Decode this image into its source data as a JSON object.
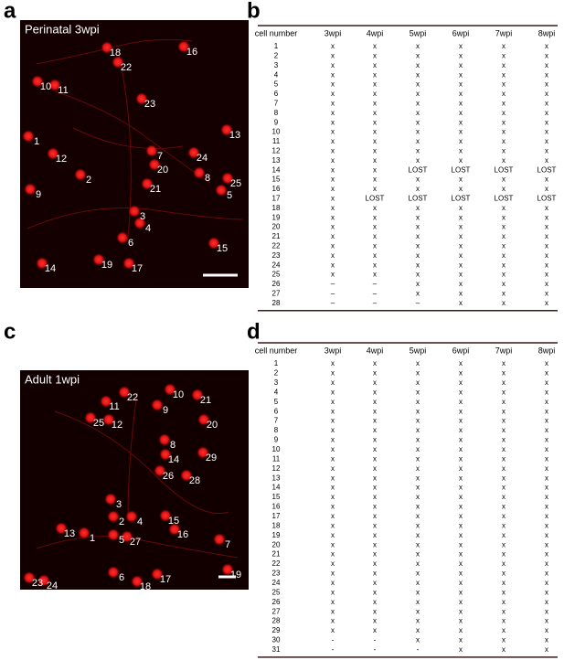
{
  "panel_a": {
    "letter": "a",
    "image_label": "Perinatal 3wpi",
    "cell_labels": [
      "16",
      "18",
      "22",
      "10",
      "11",
      "23",
      "1",
      "13",
      "12",
      "7",
      "24",
      "20",
      "2",
      "8",
      "25",
      "9",
      "21",
      "5",
      "3",
      "4",
      "6",
      "15",
      "19",
      "17",
      "14"
    ]
  },
  "panel_b": {
    "letter": "b",
    "table": {
      "header": [
        "cell number",
        "3wpi",
        "4wpi",
        "5wpi",
        "6wpi",
        "7wpi",
        "8wpi"
      ],
      "rows": [
        [
          "1",
          "x",
          "x",
          "x",
          "x",
          "x",
          "x"
        ],
        [
          "2",
          "x",
          "x",
          "x",
          "x",
          "x",
          "x"
        ],
        [
          "3",
          "x",
          "x",
          "x",
          "x",
          "x",
          "x"
        ],
        [
          "4",
          "x",
          "x",
          "x",
          "x",
          "x",
          "x"
        ],
        [
          "5",
          "x",
          "x",
          "x",
          "x",
          "x",
          "x"
        ],
        [
          "6",
          "x",
          "x",
          "x",
          "x",
          "x",
          "x"
        ],
        [
          "7",
          "x",
          "x",
          "x",
          "x",
          "x",
          "x"
        ],
        [
          "8",
          "x",
          "x",
          "x",
          "x",
          "x",
          "x"
        ],
        [
          "9",
          "x",
          "x",
          "x",
          "x",
          "x",
          "x"
        ],
        [
          "10",
          "x",
          "x",
          "x",
          "x",
          "x",
          "x"
        ],
        [
          "11",
          "x",
          "x",
          "x",
          "x",
          "x",
          "x"
        ],
        [
          "12",
          "x",
          "x",
          "x",
          "x",
          "x",
          "x"
        ],
        [
          "13",
          "x",
          "x",
          "x",
          "x",
          "x",
          "x"
        ],
        [
          "14",
          "x",
          "x",
          "LOST",
          "LOST",
          "LOST",
          "LOST"
        ],
        [
          "15",
          "x",
          "x",
          "x",
          "x",
          "x",
          "x"
        ],
        [
          "16",
          "x",
          "x",
          "x",
          "x",
          "x",
          "x"
        ],
        [
          "17",
          "x",
          "LOST",
          "LOST",
          "LOST",
          "LOST",
          "LOST"
        ],
        [
          "18",
          "x",
          "x",
          "x",
          "x",
          "x",
          "x"
        ],
        [
          "19",
          "x",
          "x",
          "x",
          "x",
          "x",
          "x"
        ],
        [
          "20",
          "x",
          "x",
          "x",
          "x",
          "x",
          "x"
        ],
        [
          "21",
          "x",
          "x",
          "x",
          "x",
          "x",
          "x"
        ],
        [
          "22",
          "x",
          "x",
          "x",
          "x",
          "x",
          "x"
        ],
        [
          "23",
          "x",
          "x",
          "x",
          "x",
          "x",
          "x"
        ],
        [
          "24",
          "x",
          "x",
          "x",
          "x",
          "x",
          "x"
        ],
        [
          "25",
          "x",
          "x",
          "x",
          "x",
          "x",
          "x"
        ],
        [
          "26",
          "–",
          "–",
          "x",
          "x",
          "x",
          "x"
        ],
        [
          "27",
          "–",
          "–",
          "x",
          "x",
          "x",
          "x"
        ],
        [
          "28",
          "–",
          "–",
          "–",
          "x",
          "x",
          "x"
        ]
      ]
    }
  },
  "panel_c": {
    "letter": "c",
    "image_label": "Adult 1wpi",
    "cell_labels": [
      "22",
      "10",
      "21",
      "11",
      "9",
      "25",
      "12",
      "20",
      "8",
      "29",
      "14",
      "26",
      "28",
      "3",
      "2",
      "4",
      "15",
      "13",
      "1",
      "16",
      "5",
      "27",
      "7",
      "6",
      "17",
      "19",
      "18",
      "23",
      "24"
    ]
  },
  "panel_d": {
    "letter": "d",
    "table": {
      "header": [
        "cell number",
        "3wpi",
        "4wpi",
        "5wpi",
        "6wpi",
        "7wpi",
        "8wpi"
      ],
      "rows": [
        [
          "1",
          "x",
          "x",
          "x",
          "x",
          "x",
          "x"
        ],
        [
          "2",
          "x",
          "x",
          "x",
          "x",
          "x",
          "x"
        ],
        [
          "3",
          "x",
          "x",
          "x",
          "x",
          "x",
          "x"
        ],
        [
          "4",
          "x",
          "x",
          "x",
          "x",
          "x",
          "x"
        ],
        [
          "5",
          "x",
          "x",
          "x",
          "x",
          "x",
          "x"
        ],
        [
          "6",
          "x",
          "x",
          "x",
          "x",
          "x",
          "x"
        ],
        [
          "7",
          "x",
          "x",
          "x",
          "x",
          "x",
          "x"
        ],
        [
          "8",
          "x",
          "x",
          "x",
          "x",
          "x",
          "x"
        ],
        [
          "9",
          "x",
          "x",
          "x",
          "x",
          "x",
          "x"
        ],
        [
          "10",
          "x",
          "x",
          "x",
          "x",
          "x",
          "x"
        ],
        [
          "11",
          "x",
          "x",
          "x",
          "x",
          "x",
          "x"
        ],
        [
          "12",
          "x",
          "x",
          "x",
          "x",
          "x",
          "x"
        ],
        [
          "13",
          "x",
          "x",
          "x",
          "x",
          "x",
          "x"
        ],
        [
          "14",
          "x",
          "x",
          "x",
          "x",
          "x",
          "x"
        ],
        [
          "15",
          "x",
          "x",
          "x",
          "x",
          "x",
          "x"
        ],
        [
          "16",
          "x",
          "x",
          "x",
          "x",
          "x",
          "x"
        ],
        [
          "17",
          "x",
          "x",
          "x",
          "x",
          "x",
          "x"
        ],
        [
          "18",
          "x",
          "x",
          "x",
          "x",
          "x",
          "x"
        ],
        [
          "19",
          "x",
          "x",
          "x",
          "x",
          "x",
          "x"
        ],
        [
          "20",
          "x",
          "x",
          "x",
          "x",
          "x",
          "x"
        ],
        [
          "21",
          "x",
          "x",
          "x",
          "x",
          "x",
          "x"
        ],
        [
          "22",
          "x",
          "x",
          "x",
          "x",
          "x",
          "x"
        ],
        [
          "23",
          "x",
          "x",
          "x",
          "x",
          "x",
          "x"
        ],
        [
          "24",
          "x",
          "x",
          "x",
          "x",
          "x",
          "x"
        ],
        [
          "25",
          "x",
          "x",
          "x",
          "x",
          "x",
          "x"
        ],
        [
          "26",
          "x",
          "x",
          "x",
          "x",
          "x",
          "x"
        ],
        [
          "27",
          "x",
          "x",
          "x",
          "x",
          "x",
          "x"
        ],
        [
          "28",
          "x",
          "x",
          "x",
          "x",
          "x",
          "x"
        ],
        [
          "29",
          "x",
          "x",
          "x",
          "x",
          "x",
          "x"
        ],
        [
          "30",
          "-",
          "-",
          "x",
          "x",
          "x",
          "x"
        ],
        [
          "31",
          "-",
          "-",
          "-",
          "x",
          "x",
          "x"
        ]
      ]
    }
  }
}
